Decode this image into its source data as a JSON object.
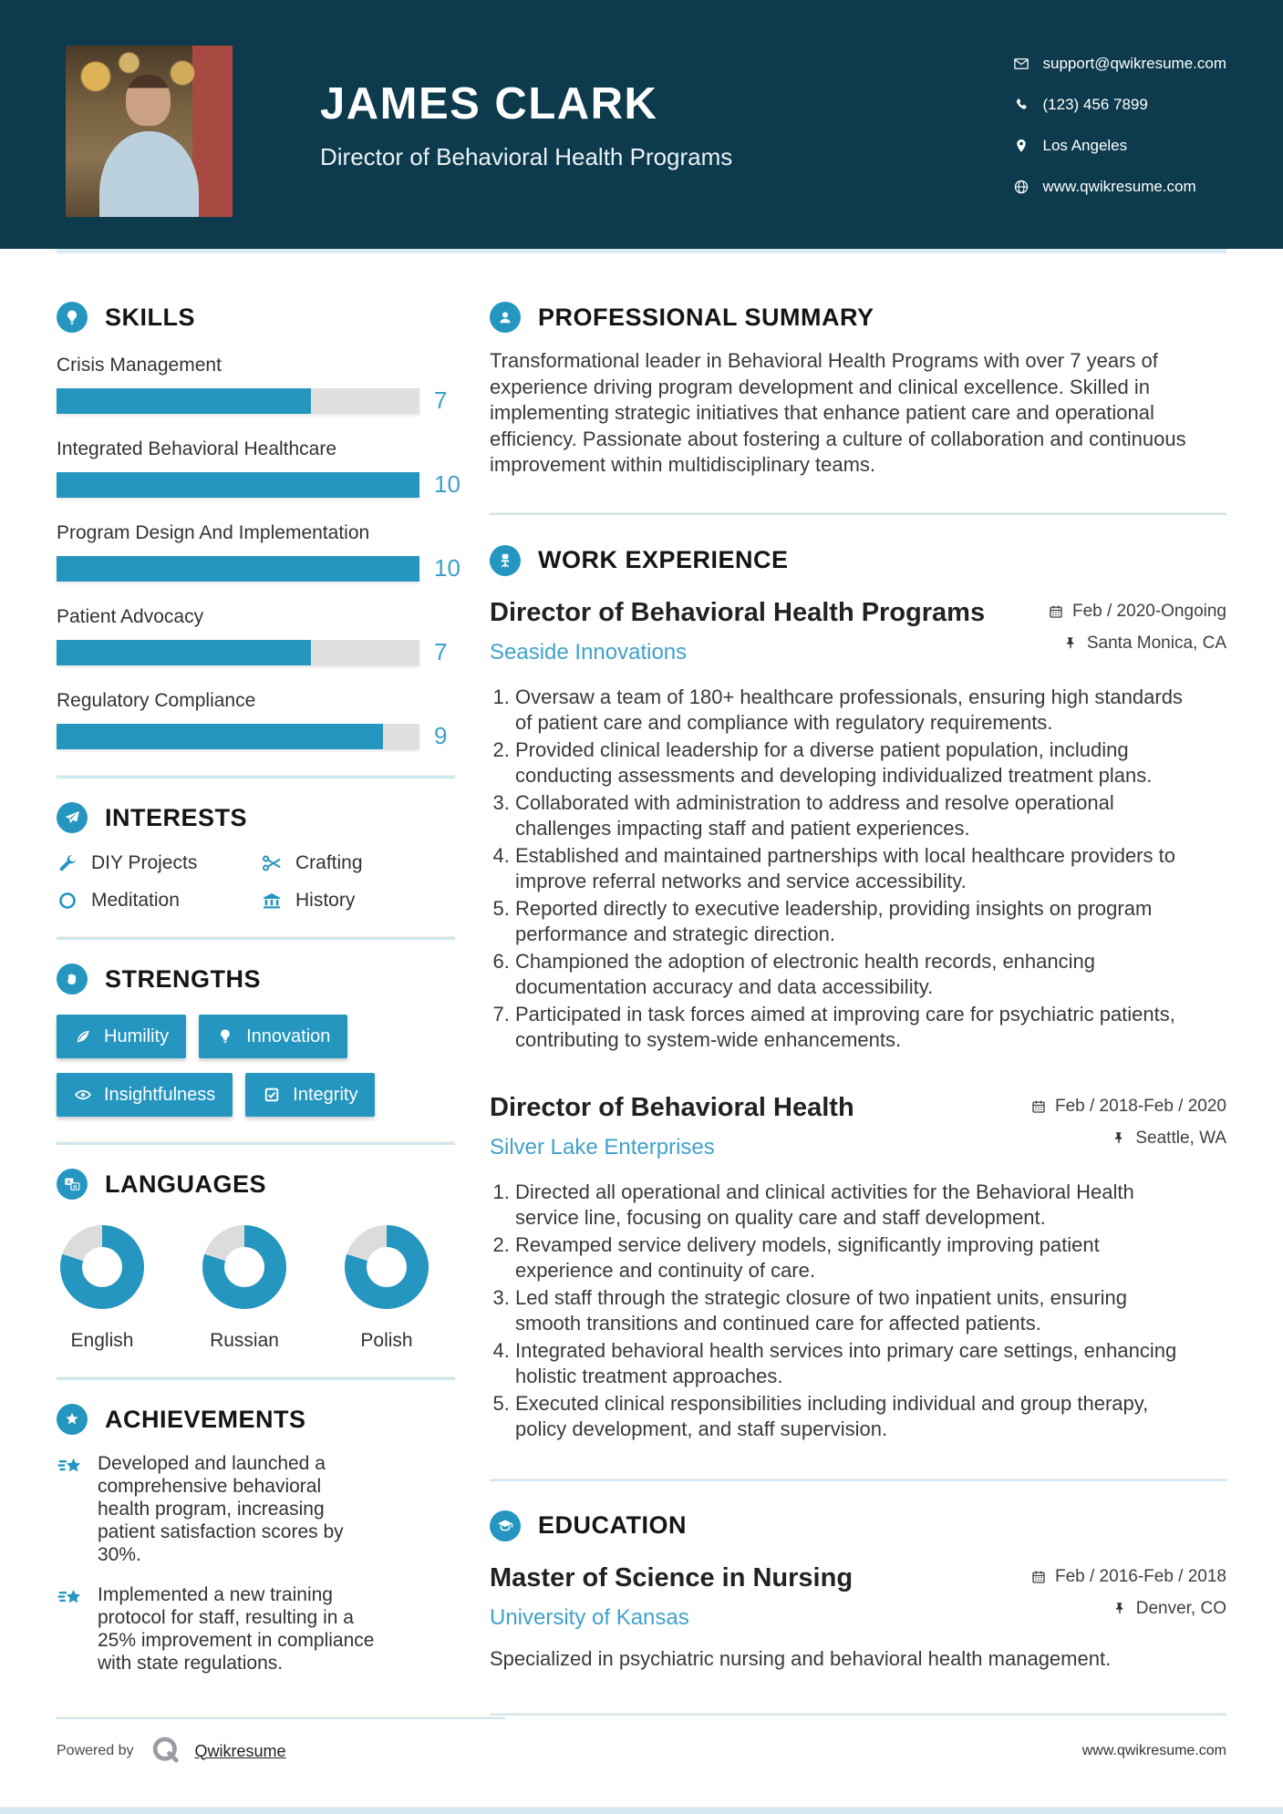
{
  "colors": {
    "accent": "#2496c0",
    "header_bg": "#0d3a4c",
    "link": "#41a1cb",
    "bar_track": "#e0e0e0",
    "donut_gray": "#dcdcdc"
  },
  "header": {
    "name": "JAMES CLARK",
    "title": "Director of Behavioral Health Programs",
    "contact": [
      {
        "icon": "email-icon",
        "text": "support@qwikresume.com"
      },
      {
        "icon": "phone-icon",
        "text": "(123) 456 7899"
      },
      {
        "icon": "location-icon",
        "text": "Los Angeles"
      },
      {
        "icon": "globe-icon",
        "text": "www.qwikresume.com"
      }
    ]
  },
  "skills": {
    "heading": "SKILLS",
    "max": 10,
    "items": [
      {
        "label": "Crisis Management",
        "value": 7
      },
      {
        "label": "Integrated Behavioral Healthcare",
        "value": 10
      },
      {
        "label": "Program Design And Implementation",
        "value": 10
      },
      {
        "label": "Patient Advocacy",
        "value": 7
      },
      {
        "label": "Regulatory Compliance",
        "value": 9
      }
    ]
  },
  "interests": {
    "heading": "INTERESTS",
    "items": [
      {
        "icon": "wrench-icon",
        "label": "DIY Projects"
      },
      {
        "icon": "scissors-icon",
        "label": "Crafting"
      },
      {
        "icon": "circle-icon",
        "label": "Meditation"
      },
      {
        "icon": "museum-icon",
        "label": "History"
      }
    ]
  },
  "strengths": {
    "heading": "STRENGTHS",
    "items": [
      {
        "icon": "leaf-icon",
        "label": "Humility"
      },
      {
        "icon": "bulb-icon",
        "label": "Innovation"
      },
      {
        "icon": "eye-icon",
        "label": "Insightfulness"
      },
      {
        "icon": "checkbox-icon",
        "label": "Integrity"
      }
    ]
  },
  "languages": {
    "heading": "LANGUAGES",
    "items": [
      {
        "label": "English",
        "percent": 80
      },
      {
        "label": "Russian",
        "percent": 80
      },
      {
        "label": "Polish",
        "percent": 80
      }
    ]
  },
  "achievements": {
    "heading": "ACHIEVEMENTS",
    "items": [
      {
        "text": "Developed and launched a comprehensive behavioral health program, increasing patient satisfaction scores by 30%."
      },
      {
        "text": "Implemented a new training protocol for staff, resulting in a 25% improvement in compliance with state regulations."
      }
    ]
  },
  "summary": {
    "heading": "PROFESSIONAL SUMMARY",
    "text": "Transformational leader in Behavioral Health Programs with over 7 years of experience driving program development and clinical excellence. Skilled in implementing strategic initiatives that enhance patient care and operational efficiency. Passionate about fostering a culture of collaboration and continuous improvement within multidisciplinary teams."
  },
  "experience": {
    "heading": "WORK EXPERIENCE",
    "jobs": [
      {
        "title": "Director of Behavioral Health Programs",
        "company": "Seaside Innovations",
        "dates": "Feb / 2020-Ongoing",
        "location": "Santa Monica, CA",
        "bullets": [
          "Oversaw a team of 180+ healthcare professionals, ensuring high standards of patient care and compliance with regulatory requirements.",
          "Provided clinical leadership for a diverse patient population, including conducting assessments and developing individualized treatment plans.",
          "Collaborated with administration to address and resolve operational challenges impacting staff and patient experiences.",
          "Established and maintained partnerships with local healthcare providers to improve referral networks and service accessibility.",
          "Reported directly to executive leadership, providing insights on program performance and strategic direction.",
          "Championed the adoption of electronic health records, enhancing documentation accuracy and data accessibility.",
          "Participated in task forces aimed at improving care for psychiatric patients, contributing to system-wide enhancements."
        ]
      },
      {
        "title": "Director of Behavioral Health",
        "company": "Silver Lake Enterprises",
        "dates": "Feb / 2018-Feb / 2020",
        "location": "Seattle, WA",
        "bullets": [
          "Directed all operational and clinical activities for the Behavioral Health service line, focusing on quality care and staff development.",
          "Revamped service delivery models, significantly improving patient experience and continuity of care.",
          "Led staff through the strategic closure of two inpatient units, ensuring smooth transitions and continued care for affected patients.",
          "Integrated behavioral health services into primary care settings, enhancing holistic treatment approaches.",
          "Executed clinical responsibilities including individual and group therapy, policy development, and staff supervision."
        ]
      }
    ]
  },
  "education": {
    "heading": "EDUCATION",
    "degree": "Master of Science in Nursing",
    "school": "University of Kansas",
    "dates": "Feb / 2016-Feb / 2018",
    "location": "Denver, CO",
    "note": "Specialized in psychiatric nursing and behavioral health management."
  },
  "footer": {
    "powered_by": "Powered by",
    "brand": "Qwikresume",
    "website": "www.qwikresume.com"
  }
}
